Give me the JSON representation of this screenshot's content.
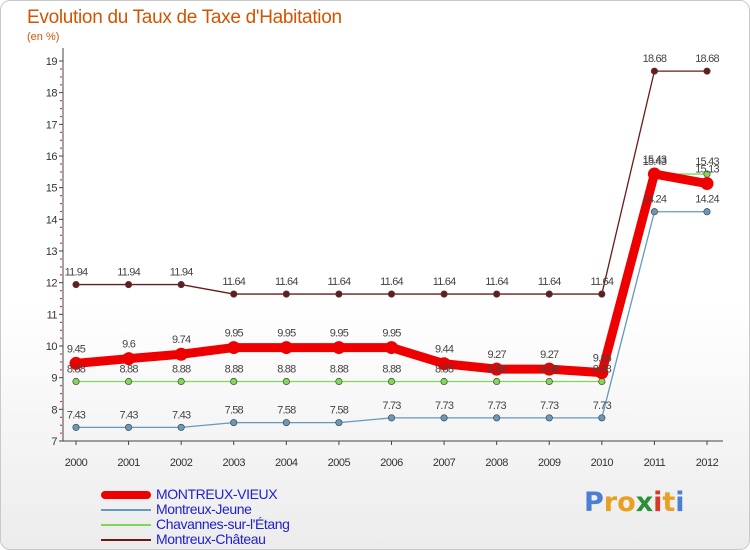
{
  "chart_data": {
    "type": "line",
    "title": "Evolution du Taux de Taxe d'Habitation",
    "subtitle": "(en %)",
    "xlabel": "",
    "ylabel": "",
    "ylim": [
      7,
      19
    ],
    "yticks": [
      "7",
      "8",
      "9",
      "10",
      "11",
      "12",
      "13",
      "14",
      "15",
      "16",
      "17",
      "18",
      "19"
    ],
    "categories": [
      "2000",
      "2001",
      "2002",
      "2003",
      "2004",
      "2005",
      "2006",
      "2007",
      "2008",
      "2009",
      "2010",
      "2011",
      "2012"
    ],
    "series": [
      {
        "name": "Montreux-Château",
        "color": "#6b1a1a",
        "values": [
          11.94,
          11.94,
          11.94,
          11.64,
          11.64,
          11.64,
          11.64,
          11.64,
          11.64,
          11.64,
          11.64,
          18.68,
          18.68
        ],
        "labels": [
          "11.94",
          "11.94",
          "11.94",
          "11.64",
          "11.64",
          "11.64",
          "11.64",
          "11.64",
          "11.64",
          "11.64",
          "11.64",
          "18.68",
          "18.68"
        ]
      },
      {
        "name": "Chavannes-sur-l'Étang",
        "color": "#7ed957",
        "values": [
          8.88,
          8.88,
          8.88,
          8.88,
          8.88,
          8.88,
          8.88,
          8.88,
          8.88,
          8.88,
          8.88,
          15.43,
          15.43
        ],
        "labels": [
          "8.88",
          "8.88",
          "8.88",
          "8.88",
          "8.88",
          "8.88",
          "8.88",
          "8.88",
          "8.88",
          "8.88",
          "8.88",
          "15.43",
          "15.43"
        ]
      },
      {
        "name": "Montreux-Jeune",
        "color": "#6699bb",
        "values": [
          7.43,
          7.43,
          7.43,
          7.58,
          7.58,
          7.58,
          7.73,
          7.73,
          7.73,
          7.73,
          7.73,
          14.24,
          14.24
        ],
        "labels": [
          "7.43",
          "7.43",
          "7.43",
          "7.58",
          "7.58",
          "7.58",
          "7.73",
          "7.73",
          "7.73",
          "7.73",
          "7.73",
          "14.24",
          "14.24"
        ]
      },
      {
        "name": "MONTREUX-VIEUX",
        "color": "#ee0000",
        "values": [
          9.45,
          9.6,
          9.74,
          9.95,
          9.95,
          9.95,
          9.95,
          9.44,
          9.27,
          9.27,
          9.16,
          15.43,
          15.13
        ],
        "labels": [
          "9.45",
          "9.6",
          "9.74",
          "9.95",
          "9.95",
          "9.95",
          "9.95",
          "9.44",
          "9.27",
          "9.27",
          "9.16",
          "15.43",
          "15.13"
        ]
      }
    ],
    "legend": [
      {
        "name": "MONTREUX-VIEUX",
        "color": "#ee0000"
      },
      {
        "name": "Montreux-Jeune",
        "color": "#6699bb"
      },
      {
        "name": "Chavannes-sur-l'Étang",
        "color": "#7ed957"
      },
      {
        "name": "Montreux-Château",
        "color": "#6b1a1a"
      }
    ]
  },
  "logo": {
    "letters": [
      "P",
      "r",
      "o",
      "x",
      "i",
      "t",
      "i"
    ],
    "colors": [
      "#4a7fd4",
      "#e8a020",
      "#e8a020",
      "#2d8f3a",
      "#d43a2a",
      "#e8a020",
      "#4a7fd4"
    ]
  }
}
